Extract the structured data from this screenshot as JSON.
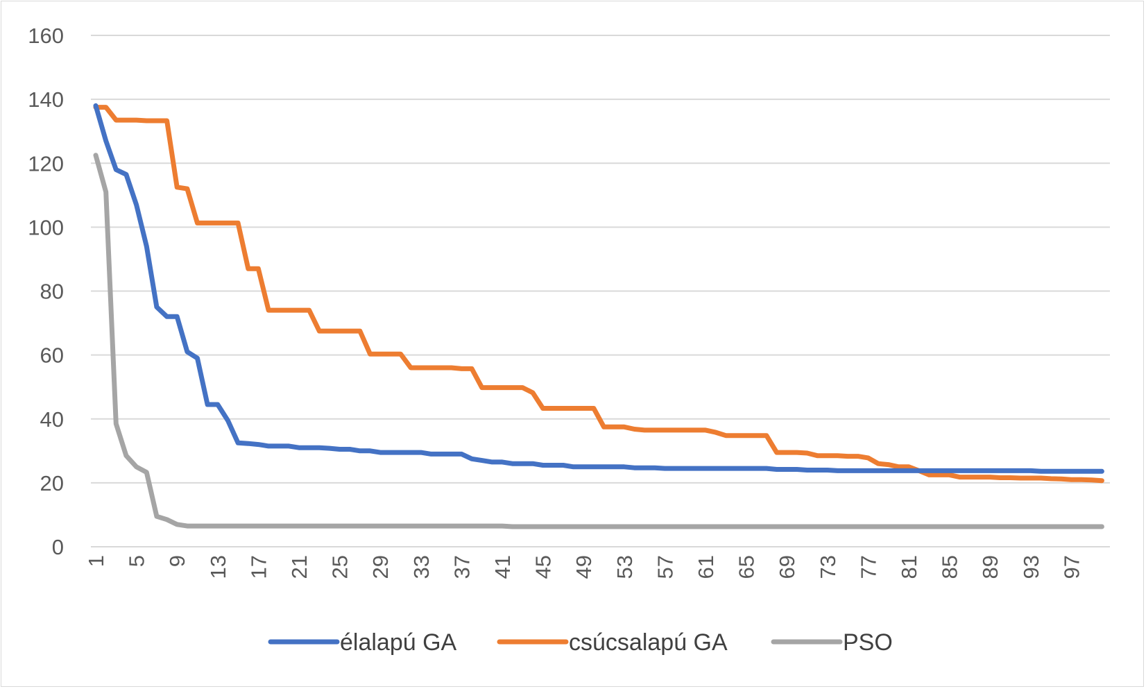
{
  "chart_data": {
    "type": "line",
    "title": "",
    "xlabel": "",
    "ylabel": "",
    "ylim": [
      0,
      160
    ],
    "yticks": [
      0,
      20,
      40,
      60,
      80,
      100,
      120,
      140,
      160
    ],
    "x_range": [
      1,
      100
    ],
    "xtick_labels": [
      "1",
      "5",
      "9",
      "13",
      "17",
      "21",
      "25",
      "29",
      "33",
      "37",
      "41",
      "45",
      "49",
      "53",
      "57",
      "61",
      "65",
      "69",
      "73",
      "77",
      "81",
      "85",
      "89",
      "93",
      "97"
    ],
    "grid": "horizontal",
    "legend_position": "bottom",
    "series": [
      {
        "name": "élalapú GA",
        "color": "#4472C4",
        "points": [
          [
            1,
            138
          ],
          [
            2,
            127
          ],
          [
            3,
            118
          ],
          [
            4,
            116.5
          ],
          [
            5,
            107
          ],
          [
            6,
            94
          ],
          [
            7,
            75
          ],
          [
            8,
            72
          ],
          [
            9,
            72
          ],
          [
            10,
            61
          ],
          [
            11,
            59
          ],
          [
            12,
            44.5
          ],
          [
            13,
            44.5
          ],
          [
            14,
            39.5
          ],
          [
            15,
            32.5
          ],
          [
            16,
            32.3
          ],
          [
            17,
            32
          ],
          [
            18,
            31.5
          ],
          [
            19,
            31.5
          ],
          [
            20,
            31.5
          ],
          [
            21,
            31
          ],
          [
            22,
            31
          ],
          [
            23,
            31
          ],
          [
            24,
            30.8
          ],
          [
            25,
            30.5
          ],
          [
            26,
            30.5
          ],
          [
            27,
            30
          ],
          [
            28,
            30
          ],
          [
            29,
            29.5
          ],
          [
            30,
            29.5
          ],
          [
            31,
            29.5
          ],
          [
            32,
            29.5
          ],
          [
            33,
            29.5
          ],
          [
            34,
            29
          ],
          [
            35,
            29
          ],
          [
            36,
            29
          ],
          [
            37,
            29
          ],
          [
            38,
            27.5
          ],
          [
            39,
            27
          ],
          [
            40,
            26.5
          ],
          [
            41,
            26.5
          ],
          [
            42,
            26
          ],
          [
            43,
            26
          ],
          [
            44,
            26
          ],
          [
            45,
            25.5
          ],
          [
            46,
            25.5
          ],
          [
            47,
            25.5
          ],
          [
            48,
            25
          ],
          [
            49,
            25
          ],
          [
            50,
            25
          ],
          [
            51,
            25
          ],
          [
            52,
            25
          ],
          [
            53,
            25
          ],
          [
            54,
            24.7
          ],
          [
            55,
            24.7
          ],
          [
            56,
            24.7
          ],
          [
            57,
            24.5
          ],
          [
            58,
            24.5
          ],
          [
            59,
            24.5
          ],
          [
            60,
            24.5
          ],
          [
            61,
            24.5
          ],
          [
            62,
            24.5
          ],
          [
            63,
            24.5
          ],
          [
            64,
            24.5
          ],
          [
            65,
            24.5
          ],
          [
            66,
            24.5
          ],
          [
            67,
            24.5
          ],
          [
            68,
            24.2
          ],
          [
            69,
            24.2
          ],
          [
            70,
            24.2
          ],
          [
            71,
            24
          ],
          [
            72,
            24
          ],
          [
            73,
            24
          ],
          [
            74,
            23.8
          ],
          [
            75,
            23.8
          ],
          [
            76,
            23.8
          ],
          [
            77,
            23.8
          ],
          [
            78,
            23.8
          ],
          [
            79,
            23.8
          ],
          [
            80,
            23.8
          ],
          [
            81,
            23.8
          ],
          [
            82,
            23.8
          ],
          [
            83,
            23.8
          ],
          [
            84,
            23.8
          ],
          [
            85,
            23.8
          ],
          [
            86,
            23.8
          ],
          [
            87,
            23.8
          ],
          [
            88,
            23.8
          ],
          [
            89,
            23.8
          ],
          [
            90,
            23.8
          ],
          [
            91,
            23.8
          ],
          [
            92,
            23.8
          ],
          [
            93,
            23.8
          ],
          [
            94,
            23.6
          ],
          [
            95,
            23.6
          ],
          [
            96,
            23.6
          ],
          [
            97,
            23.6
          ],
          [
            98,
            23.6
          ],
          [
            99,
            23.6
          ],
          [
            100,
            23.6
          ]
        ]
      },
      {
        "name": "csúcsalapú GA",
        "color": "#ED7D31",
        "points": [
          [
            1,
            137.5
          ],
          [
            2,
            137.5
          ],
          [
            3,
            133.5
          ],
          [
            4,
            133.5
          ],
          [
            5,
            133.5
          ],
          [
            6,
            133.3
          ],
          [
            7,
            133.3
          ],
          [
            8,
            133.3
          ],
          [
            9,
            112.5
          ],
          [
            10,
            112
          ],
          [
            11,
            101.3
          ],
          [
            12,
            101.3
          ],
          [
            13,
            101.3
          ],
          [
            14,
            101.3
          ],
          [
            15,
            101.3
          ],
          [
            16,
            87
          ],
          [
            17,
            87
          ],
          [
            18,
            74
          ],
          [
            19,
            74
          ],
          [
            20,
            74
          ],
          [
            21,
            74
          ],
          [
            22,
            74
          ],
          [
            23,
            67.5
          ],
          [
            24,
            67.5
          ],
          [
            25,
            67.5
          ],
          [
            26,
            67.5
          ],
          [
            27,
            67.5
          ],
          [
            28,
            60.3
          ],
          [
            29,
            60.3
          ],
          [
            30,
            60.3
          ],
          [
            31,
            60.3
          ],
          [
            32,
            56
          ],
          [
            33,
            56
          ],
          [
            34,
            56
          ],
          [
            35,
            56
          ],
          [
            36,
            56
          ],
          [
            37,
            55.7
          ],
          [
            38,
            55.7
          ],
          [
            39,
            49.8
          ],
          [
            40,
            49.8
          ],
          [
            41,
            49.8
          ],
          [
            42,
            49.8
          ],
          [
            43,
            49.8
          ],
          [
            44,
            48.2
          ],
          [
            45,
            43.3
          ],
          [
            46,
            43.3
          ],
          [
            47,
            43.3
          ],
          [
            48,
            43.3
          ],
          [
            49,
            43.3
          ],
          [
            50,
            43.3
          ],
          [
            51,
            37.5
          ],
          [
            52,
            37.5
          ],
          [
            53,
            37.5
          ],
          [
            54,
            36.8
          ],
          [
            55,
            36.5
          ],
          [
            56,
            36.5
          ],
          [
            57,
            36.5
          ],
          [
            58,
            36.5
          ],
          [
            59,
            36.5
          ],
          [
            60,
            36.5
          ],
          [
            61,
            36.5
          ],
          [
            62,
            35.8
          ],
          [
            63,
            34.8
          ],
          [
            64,
            34.8
          ],
          [
            65,
            34.8
          ],
          [
            66,
            34.8
          ],
          [
            67,
            34.8
          ],
          [
            68,
            29.5
          ],
          [
            69,
            29.5
          ],
          [
            70,
            29.5
          ],
          [
            71,
            29.3
          ],
          [
            72,
            28.5
          ],
          [
            73,
            28.5
          ],
          [
            74,
            28.5
          ],
          [
            75,
            28.3
          ],
          [
            76,
            28.3
          ],
          [
            77,
            27.8
          ],
          [
            78,
            26
          ],
          [
            79,
            25.7
          ],
          [
            80,
            25
          ],
          [
            81,
            25
          ],
          [
            82,
            23.8
          ],
          [
            83,
            22.5
          ],
          [
            84,
            22.5
          ],
          [
            85,
            22.5
          ],
          [
            86,
            21.8
          ],
          [
            87,
            21.8
          ],
          [
            88,
            21.8
          ],
          [
            89,
            21.8
          ],
          [
            90,
            21.6
          ],
          [
            91,
            21.6
          ],
          [
            92,
            21.5
          ],
          [
            93,
            21.5
          ],
          [
            94,
            21.5
          ],
          [
            95,
            21.3
          ],
          [
            96,
            21.2
          ],
          [
            97,
            21
          ],
          [
            98,
            21
          ],
          [
            99,
            20.9
          ],
          [
            100,
            20.7
          ]
        ]
      },
      {
        "name": "PSO",
        "color": "#A5A5A5",
        "points": [
          [
            1,
            122.5
          ],
          [
            2,
            111
          ],
          [
            3,
            38.5
          ],
          [
            4,
            28.5
          ],
          [
            5,
            25
          ],
          [
            6,
            23.3
          ],
          [
            7,
            9.5
          ],
          [
            8,
            8.5
          ],
          [
            9,
            7
          ],
          [
            10,
            6.5
          ],
          [
            11,
            6.5
          ],
          [
            12,
            6.5
          ],
          [
            13,
            6.5
          ],
          [
            14,
            6.5
          ],
          [
            15,
            6.5
          ],
          [
            16,
            6.5
          ],
          [
            17,
            6.5
          ],
          [
            18,
            6.5
          ],
          [
            19,
            6.5
          ],
          [
            20,
            6.5
          ],
          [
            21,
            6.5
          ],
          [
            22,
            6.5
          ],
          [
            23,
            6.5
          ],
          [
            24,
            6.5
          ],
          [
            25,
            6.5
          ],
          [
            26,
            6.5
          ],
          [
            27,
            6.5
          ],
          [
            28,
            6.5
          ],
          [
            29,
            6.5
          ],
          [
            30,
            6.5
          ],
          [
            31,
            6.5
          ],
          [
            32,
            6.5
          ],
          [
            33,
            6.5
          ],
          [
            34,
            6.5
          ],
          [
            35,
            6.5
          ],
          [
            36,
            6.5
          ],
          [
            37,
            6.5
          ],
          [
            38,
            6.5
          ],
          [
            39,
            6.5
          ],
          [
            40,
            6.5
          ],
          [
            41,
            6.5
          ],
          [
            42,
            6.3
          ],
          [
            43,
            6.3
          ],
          [
            44,
            6.3
          ],
          [
            45,
            6.3
          ],
          [
            46,
            6.3
          ],
          [
            47,
            6.3
          ],
          [
            48,
            6.3
          ],
          [
            49,
            6.3
          ],
          [
            50,
            6.3
          ],
          [
            51,
            6.3
          ],
          [
            52,
            6.3
          ],
          [
            53,
            6.3
          ],
          [
            54,
            6.3
          ],
          [
            55,
            6.3
          ],
          [
            56,
            6.3
          ],
          [
            57,
            6.3
          ],
          [
            58,
            6.3
          ],
          [
            59,
            6.3
          ],
          [
            60,
            6.3
          ],
          [
            61,
            6.3
          ],
          [
            62,
            6.3
          ],
          [
            63,
            6.3
          ],
          [
            64,
            6.3
          ],
          [
            65,
            6.3
          ],
          [
            66,
            6.3
          ],
          [
            67,
            6.3
          ],
          [
            68,
            6.3
          ],
          [
            69,
            6.3
          ],
          [
            70,
            6.3
          ],
          [
            71,
            6.3
          ],
          [
            72,
            6.3
          ],
          [
            73,
            6.3
          ],
          [
            74,
            6.3
          ],
          [
            75,
            6.3
          ],
          [
            76,
            6.3
          ],
          [
            77,
            6.3
          ],
          [
            78,
            6.3
          ],
          [
            79,
            6.3
          ],
          [
            80,
            6.3
          ],
          [
            81,
            6.3
          ],
          [
            82,
            6.3
          ],
          [
            83,
            6.3
          ],
          [
            84,
            6.3
          ],
          [
            85,
            6.3
          ],
          [
            86,
            6.3
          ],
          [
            87,
            6.3
          ],
          [
            88,
            6.3
          ],
          [
            89,
            6.3
          ],
          [
            90,
            6.3
          ],
          [
            91,
            6.3
          ],
          [
            92,
            6.3
          ],
          [
            93,
            6.3
          ],
          [
            94,
            6.3
          ],
          [
            95,
            6.3
          ],
          [
            96,
            6.3
          ],
          [
            97,
            6.3
          ],
          [
            98,
            6.3
          ],
          [
            99,
            6.3
          ],
          [
            100,
            6.3
          ]
        ]
      }
    ]
  }
}
